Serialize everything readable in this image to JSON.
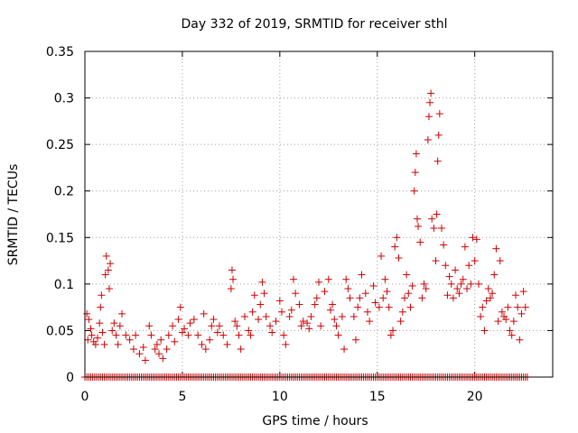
{
  "chart_data": {
    "type": "scatter",
    "title": "Day 332 of 2019, SRMTID for receiver sthl",
    "xlabel": "GPS time / hours",
    "ylabel": "SRMTID / TECUs",
    "xlim": [
      0,
      24
    ],
    "ylim": [
      0,
      0.35
    ],
    "xticks": [
      0,
      5,
      10,
      15,
      20
    ],
    "yticks": [
      0,
      0.05,
      0.1,
      0.15,
      0.2,
      0.25,
      0.3,
      0.35
    ],
    "xtick_labels": [
      "0",
      "5",
      "10",
      "15",
      "20"
    ],
    "ytick_labels": [
      "0",
      "0.05",
      "0.1",
      "0.15",
      "0.2",
      "0.25",
      "0.3",
      "0.35"
    ],
    "grid": true,
    "marker": "+",
    "color": "#cc0000",
    "series": [
      {
        "name": "SRMTID",
        "points": [
          [
            0.1,
            0.068
          ],
          [
            0.15,
            0.04
          ],
          [
            0.2,
            0.062
          ],
          [
            0.3,
            0.052
          ],
          [
            0.35,
            0.045
          ],
          [
            0.45,
            0.038
          ],
          [
            0.55,
            0.035
          ],
          [
            0.65,
            0.042
          ],
          [
            0.75,
            0.058
          ],
          [
            0.8,
            0.075
          ],
          [
            0.85,
            0.088
          ],
          [
            0.9,
            0.048
          ],
          [
            1.0,
            0.035
          ],
          [
            1.05,
            0.11
          ],
          [
            1.1,
            0.13
          ],
          [
            1.2,
            0.115
          ],
          [
            1.25,
            0.095
          ],
          [
            1.3,
            0.122
          ],
          [
            1.4,
            0.05
          ],
          [
            1.5,
            0.058
          ],
          [
            1.6,
            0.045
          ],
          [
            1.7,
            0.035
          ],
          [
            1.8,
            0.055
          ],
          [
            1.9,
            0.068
          ],
          [
            2.1,
            0.045
          ],
          [
            2.3,
            0.04
          ],
          [
            2.5,
            0.03
          ],
          [
            2.6,
            0.045
          ],
          [
            2.8,
            0.025
          ],
          [
            3.0,
            0.032
          ],
          [
            3.1,
            0.018
          ],
          [
            3.3,
            0.055
          ],
          [
            3.4,
            0.045
          ],
          [
            3.6,
            0.03
          ],
          [
            3.7,
            0.035
          ],
          [
            3.8,
            0.025
          ],
          [
            3.9,
            0.04
          ],
          [
            4.0,
            0.02
          ],
          [
            4.2,
            0.03
          ],
          [
            4.3,
            0.045
          ],
          [
            4.5,
            0.055
          ],
          [
            4.6,
            0.038
          ],
          [
            4.8,
            0.062
          ],
          [
            4.9,
            0.075
          ],
          [
            5.0,
            0.048
          ],
          [
            5.1,
            0.052
          ],
          [
            5.3,
            0.045
          ],
          [
            5.4,
            0.058
          ],
          [
            5.6,
            0.062
          ],
          [
            5.8,
            0.045
          ],
          [
            6.0,
            0.035
          ],
          [
            6.1,
            0.068
          ],
          [
            6.2,
            0.03
          ],
          [
            6.4,
            0.04
          ],
          [
            6.5,
            0.055
          ],
          [
            6.6,
            0.062
          ],
          [
            6.8,
            0.048
          ],
          [
            6.9,
            0.055
          ],
          [
            7.1,
            0.045
          ],
          [
            7.3,
            0.035
          ],
          [
            7.5,
            0.095
          ],
          [
            7.55,
            0.115
          ],
          [
            7.6,
            0.105
          ],
          [
            7.7,
            0.06
          ],
          [
            7.8,
            0.055
          ],
          [
            7.9,
            0.045
          ],
          [
            8.0,
            0.03
          ],
          [
            8.2,
            0.065
          ],
          [
            8.4,
            0.05
          ],
          [
            8.5,
            0.045
          ],
          [
            8.6,
            0.07
          ],
          [
            8.7,
            0.088
          ],
          [
            8.9,
            0.062
          ],
          [
            9.0,
            0.078
          ],
          [
            9.1,
            0.102
          ],
          [
            9.2,
            0.09
          ],
          [
            9.3,
            0.065
          ],
          [
            9.5,
            0.055
          ],
          [
            9.6,
            0.048
          ],
          [
            9.8,
            0.06
          ],
          [
            10.0,
            0.082
          ],
          [
            10.1,
            0.07
          ],
          [
            10.2,
            0.045
          ],
          [
            10.3,
            0.035
          ],
          [
            10.5,
            0.065
          ],
          [
            10.6,
            0.072
          ],
          [
            10.7,
            0.105
          ],
          [
            10.8,
            0.09
          ],
          [
            11.0,
            0.078
          ],
          [
            11.1,
            0.055
          ],
          [
            11.2,
            0.06
          ],
          [
            11.4,
            0.058
          ],
          [
            11.5,
            0.052
          ],
          [
            11.6,
            0.065
          ],
          [
            11.8,
            0.078
          ],
          [
            11.9,
            0.085
          ],
          [
            12.0,
            0.102
          ],
          [
            12.1,
            0.055
          ],
          [
            12.3,
            0.092
          ],
          [
            12.5,
            0.105
          ],
          [
            12.6,
            0.072
          ],
          [
            12.7,
            0.078
          ],
          [
            12.8,
            0.062
          ],
          [
            12.9,
            0.055
          ],
          [
            13.0,
            0.045
          ],
          [
            13.2,
            0.065
          ],
          [
            13.3,
            0.03
          ],
          [
            13.4,
            0.105
          ],
          [
            13.5,
            0.095
          ],
          [
            13.6,
            0.085
          ],
          [
            13.8,
            0.065
          ],
          [
            13.9,
            0.04
          ],
          [
            14.0,
            0.075
          ],
          [
            14.1,
            0.085
          ],
          [
            14.2,
            0.11
          ],
          [
            14.4,
            0.09
          ],
          [
            14.5,
            0.07
          ],
          [
            14.6,
            0.06
          ],
          [
            14.8,
            0.098
          ],
          [
            14.9,
            0.08
          ],
          [
            15.1,
            0.075
          ],
          [
            15.2,
            0.13
          ],
          [
            15.3,
            0.085
          ],
          [
            15.4,
            0.105
          ],
          [
            15.5,
            0.092
          ],
          [
            15.6,
            0.075
          ],
          [
            15.7,
            0.045
          ],
          [
            15.8,
            0.05
          ],
          [
            15.9,
            0.14
          ],
          [
            16.0,
            0.15
          ],
          [
            16.1,
            0.128
          ],
          [
            16.2,
            0.06
          ],
          [
            16.3,
            0.07
          ],
          [
            16.4,
            0.085
          ],
          [
            16.5,
            0.11
          ],
          [
            16.6,
            0.09
          ],
          [
            16.7,
            0.075
          ],
          [
            16.8,
            0.098
          ],
          [
            16.9,
            0.2
          ],
          [
            16.95,
            0.22
          ],
          [
            17.0,
            0.24
          ],
          [
            17.05,
            0.17
          ],
          [
            17.1,
            0.162
          ],
          [
            17.2,
            0.145
          ],
          [
            17.3,
            0.085
          ],
          [
            17.4,
            0.1
          ],
          [
            17.5,
            0.095
          ],
          [
            17.6,
            0.255
          ],
          [
            17.65,
            0.28
          ],
          [
            17.7,
            0.295
          ],
          [
            17.75,
            0.305
          ],
          [
            17.8,
            0.17
          ],
          [
            17.9,
            0.16
          ],
          [
            18.0,
            0.125
          ],
          [
            18.05,
            0.175
          ],
          [
            18.1,
            0.232
          ],
          [
            18.15,
            0.26
          ],
          [
            18.2,
            0.283
          ],
          [
            18.3,
            0.16
          ],
          [
            18.4,
            0.142
          ],
          [
            18.5,
            0.12
          ],
          [
            18.6,
            0.088
          ],
          [
            18.7,
            0.108
          ],
          [
            18.8,
            0.1
          ],
          [
            18.9,
            0.085
          ],
          [
            19.0,
            0.115
          ],
          [
            19.1,
            0.095
          ],
          [
            19.2,
            0.09
          ],
          [
            19.3,
            0.1
          ],
          [
            19.4,
            0.105
          ],
          [
            19.5,
            0.14
          ],
          [
            19.6,
            0.095
          ],
          [
            19.7,
            0.12
          ],
          [
            19.8,
            0.1
          ],
          [
            19.9,
            0.15
          ],
          [
            20.0,
            0.125
          ],
          [
            20.1,
            0.148
          ],
          [
            20.2,
            0.1
          ],
          [
            20.3,
            0.065
          ],
          [
            20.4,
            0.075
          ],
          [
            20.5,
            0.05
          ],
          [
            20.6,
            0.082
          ],
          [
            20.7,
            0.095
          ],
          [
            20.8,
            0.085
          ],
          [
            20.9,
            0.09
          ],
          [
            21.0,
            0.11
          ],
          [
            21.1,
            0.138
          ],
          [
            21.2,
            0.06
          ],
          [
            21.3,
            0.125
          ],
          [
            21.4,
            0.07
          ],
          [
            21.5,
            0.065
          ],
          [
            21.6,
            0.062
          ],
          [
            21.7,
            0.075
          ],
          [
            21.8,
            0.05
          ],
          [
            21.9,
            0.045
          ],
          [
            22.0,
            0.06
          ],
          [
            22.1,
            0.088
          ],
          [
            22.2,
            0.075
          ],
          [
            22.3,
            0.04
          ],
          [
            22.4,
            0.068
          ],
          [
            22.5,
            0.092
          ],
          [
            22.6,
            0.075
          ]
        ],
        "zero_range": [
          0,
          22.7
        ],
        "zero_step": 0.1
      }
    ]
  }
}
